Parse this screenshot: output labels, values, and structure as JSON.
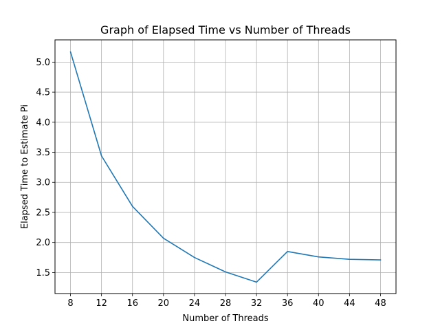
{
  "chart_data": {
    "type": "line",
    "title": "Graph of Elapsed Time vs Number of Threads",
    "xlabel": "Number of Threads",
    "ylabel": "Elapsed Time to Estimate Pi",
    "x": [
      8,
      12,
      16,
      20,
      24,
      28,
      32,
      36,
      40,
      44,
      48
    ],
    "series": [
      {
        "values": [
          5.17,
          3.44,
          2.6,
          2.07,
          1.75,
          1.51,
          1.34,
          1.85,
          1.76,
          1.72,
          1.71
        ],
        "color": "#1f77b4"
      }
    ],
    "xlim": [
      6.0,
      50.0
    ],
    "ylim": [
      1.15,
      5.37
    ],
    "xticks": [
      8,
      12,
      16,
      20,
      24,
      28,
      32,
      36,
      40,
      44,
      48
    ],
    "yticks": [
      1.5,
      2.0,
      2.5,
      3.0,
      3.5,
      4.0,
      4.5,
      5.0
    ],
    "ytick_labels": [
      "1.5",
      "2.0",
      "2.5",
      "3.0",
      "3.5",
      "4.0",
      "4.5",
      "5.0"
    ],
    "grid": true,
    "grid_color": "#b0b0b0"
  }
}
